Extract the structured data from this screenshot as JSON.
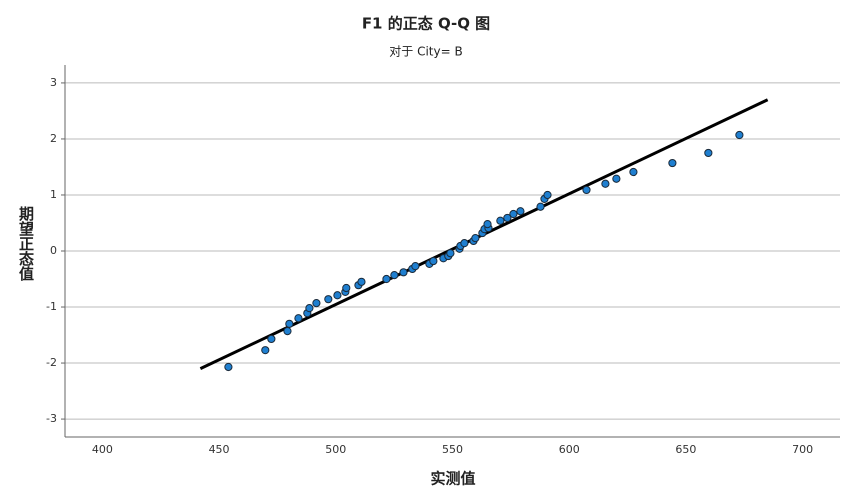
{
  "chart_data": {
    "type": "scatter",
    "title": "F1 的正态 Q-Q 图",
    "subtitle": "对于 City= B",
    "x_label": "实测值",
    "y_label": "期望正态值",
    "xlim": [
      384,
      716
    ],
    "ylim": [
      -3.32,
      3.32
    ],
    "xticks": [
      400,
      450,
      500,
      550,
      600,
      650,
      700
    ],
    "yticks": [
      -3,
      -2,
      -1,
      0,
      1,
      2,
      3
    ],
    "grid": true,
    "color": "#1f7fd0",
    "x": [
      454.0,
      469.8,
      472.4,
      479.3,
      480.1,
      484.0,
      487.8,
      488.7,
      491.7,
      496.8,
      500.7,
      504.1,
      504.5,
      509.7,
      511.0,
      521.7,
      525.1,
      529.0,
      532.8,
      534.1,
      540.1,
      541.8,
      546.1,
      548.2,
      549.1,
      553.0,
      553.4,
      555.1,
      559.0,
      559.8,
      562.8,
      563.7,
      565.4,
      565.0,
      570.5,
      573.5,
      576.1,
      579.1,
      587.7,
      589.4,
      590.7,
      607.4,
      615.5,
      620.2,
      627.5,
      644.2,
      659.6,
      672.9
    ],
    "values": [
      -2.07,
      -1.77,
      -1.57,
      -1.43,
      -1.3,
      -1.2,
      -1.11,
      -1.02,
      -0.93,
      -0.86,
      -0.79,
      -0.73,
      -0.66,
      -0.61,
      -0.55,
      -0.5,
      -0.43,
      -0.38,
      -0.32,
      -0.27,
      -0.23,
      -0.18,
      -0.13,
      -0.09,
      -0.04,
      0.04,
      0.09,
      0.14,
      0.18,
      0.23,
      0.32,
      0.39,
      0.41,
      0.48,
      0.54,
      0.59,
      0.66,
      0.71,
      0.79,
      0.93,
      1.0,
      1.09,
      1.2,
      1.29,
      1.41,
      1.57,
      1.75,
      2.07
    ],
    "reference_line": {
      "x": [
        442,
        685
      ],
      "y": [
        -2.1,
        2.7
      ]
    }
  }
}
